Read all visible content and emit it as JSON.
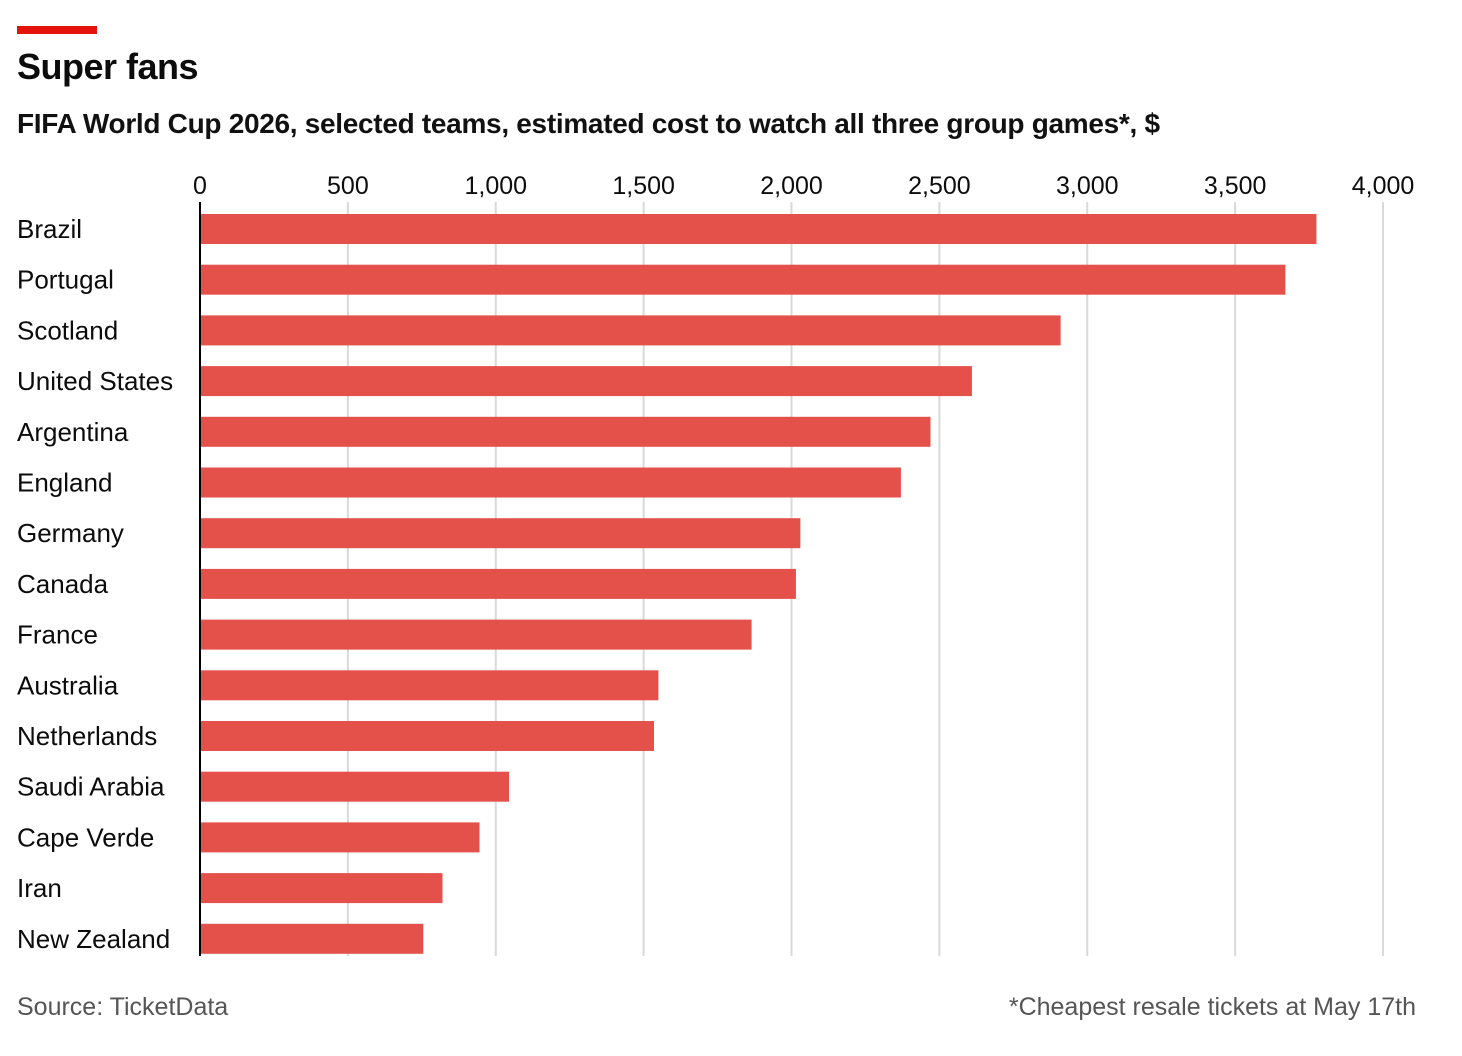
{
  "title": "Super fans",
  "subtitle": "FIFA World Cup 2026, selected teams, estimated cost to watch all three group games*, $",
  "source": "Source: TicketData",
  "note": "*Cheapest resale tickets at May 17th",
  "colors": {
    "accent": "#e3120b",
    "bar": "#e3514a",
    "grid": "#d9d9d9",
    "axis": "#000000"
  },
  "chart_data": {
    "type": "bar",
    "orientation": "horizontal",
    "title": "Super fans",
    "subtitle": "FIFA World Cup 2026, selected teams, estimated cost to watch all three group games*, $",
    "categories": [
      "Brazil",
      "Portugal",
      "Scotland",
      "United States",
      "Argentina",
      "England",
      "Germany",
      "Canada",
      "France",
      "Australia",
      "Netherlands",
      "Saudi Arabia",
      "Cape Verde",
      "Iran",
      "New Zealand"
    ],
    "values": [
      3775,
      3670,
      2910,
      2610,
      2470,
      2370,
      2030,
      2015,
      1865,
      1550,
      1535,
      1045,
      945,
      820,
      755
    ],
    "xlim": [
      0,
      4000
    ],
    "ticks": [
      0,
      500,
      1000,
      1500,
      2000,
      2500,
      3000,
      3500,
      4000
    ],
    "tick_labels": [
      "0",
      "500",
      "1,000",
      "1,500",
      "2,000",
      "2,500",
      "3,000",
      "3,500",
      "4,000"
    ],
    "axis_position": "top",
    "grid": true,
    "legend": "none"
  }
}
